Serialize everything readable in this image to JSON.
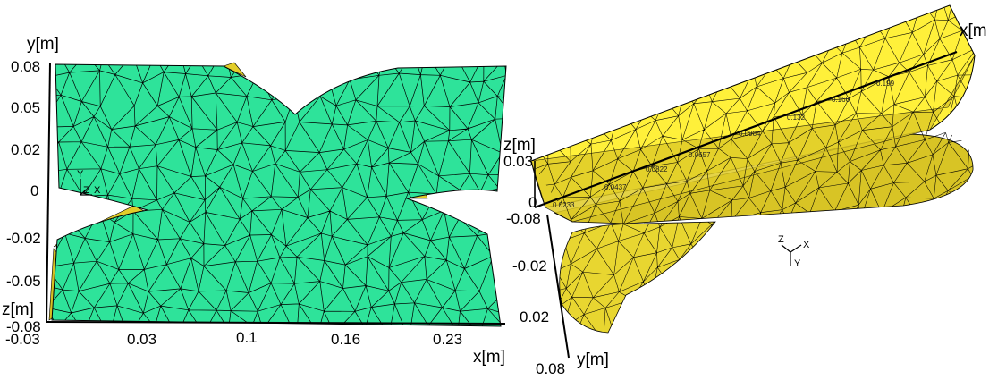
{
  "left_view": {
    "y_axis_label": "y[m]",
    "z_axis_label": "z[m]",
    "x_axis_label": "x[m]",
    "y_ticks": [
      "0.08",
      "0.05",
      "0.02",
      "0",
      "-0.02",
      "-0.05",
      "-0.08"
    ],
    "x_ticks": [
      "-0.03",
      "0.03",
      "0.1",
      "0.16",
      "0.23"
    ],
    "triad": {
      "y": "Y",
      "z": "Z",
      "x": "X"
    },
    "colors": {
      "face": "#2ee39a",
      "side": "#e2cd2a",
      "mesh": "#000000"
    }
  },
  "right_view": {
    "x_axis_label": "x[m",
    "z_axis_label": "z[m]",
    "y_axis_label": "y[m]",
    "z_ticks": [
      "0.03",
      "0"
    ],
    "y_ticks": [
      "-0.08",
      "-0.02",
      "0.02",
      "0.08"
    ],
    "x_axis_tick_labels": [
      "0.0233",
      "0.0437",
      "0.0822",
      "0.0657",
      "0.0984",
      "0.132",
      "0.166",
      "0.199"
    ],
    "triad": {
      "z": "Z",
      "x": "X",
      "y": "Y"
    },
    "colors": {
      "face": "#fff03a",
      "shade": "#d8c425",
      "mesh": "#000000"
    }
  }
}
